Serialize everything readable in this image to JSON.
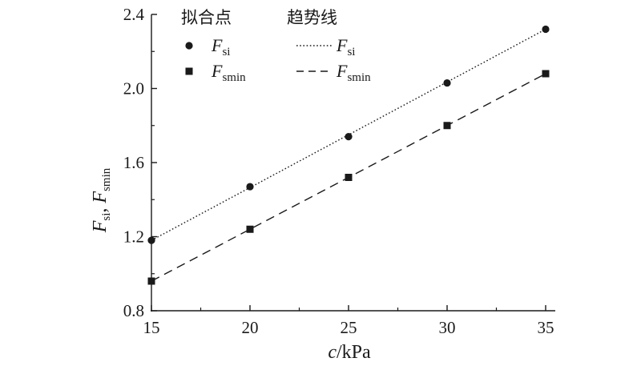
{
  "chart_data": {
    "type": "scatter",
    "xlabel": {
      "main": "c",
      "rest": "/kPa"
    },
    "ylabel": {
      "f1": "F",
      "f1_sub": "si",
      "sep": ", ",
      "f2": "F",
      "f2_sub": "smin"
    },
    "xlim": [
      15,
      35
    ],
    "ylim": [
      0.8,
      2.4
    ],
    "xticks": [
      15,
      20,
      25,
      30,
      35
    ],
    "yticks": [
      0.8,
      1.2,
      1.6,
      2.0,
      2.4
    ],
    "xtick_labels": [
      "15",
      "20",
      "25",
      "30",
      "35"
    ],
    "ytick_labels": [
      "0.8",
      "1.2",
      "1.6",
      "2.0",
      "2.4"
    ],
    "legend": {
      "placement": "top-left",
      "header_points": "拟合点",
      "header_trend": "趋势线",
      "entries": [
        {
          "symbol": "F",
          "sub": "si",
          "marker": "circle",
          "line": "dotted"
        },
        {
          "symbol": "F",
          "sub": "smin",
          "marker": "square",
          "line": "dashed"
        }
      ]
    },
    "series": [
      {
        "marker": "circle",
        "x": [
          15,
          20,
          25,
          30,
          35
        ],
        "y": [
          1.18,
          1.47,
          1.74,
          2.03,
          2.32
        ]
      },
      {
        "marker": "square",
        "x": [
          15,
          20,
          25,
          30,
          35
        ],
        "y": [
          0.96,
          1.24,
          1.52,
          1.8,
          2.08
        ]
      }
    ],
    "trendlines": [
      {
        "style": "dotted",
        "from": [
          15,
          1.18
        ],
        "to": [
          35,
          2.32
        ]
      },
      {
        "style": "dashed",
        "from": [
          15,
          0.96
        ],
        "to": [
          35,
          2.08
        ]
      }
    ],
    "colors": {
      "ink": "#1a1a1a"
    }
  }
}
